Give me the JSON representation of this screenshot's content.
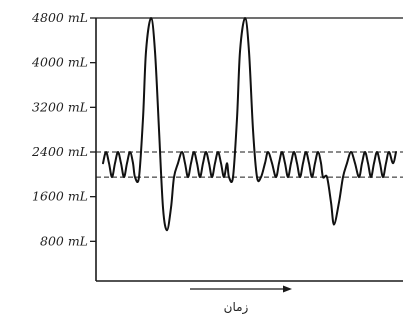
{
  "chart_data": {
    "type": "line",
    "title": "",
    "xlabel": "زمان",
    "ylabel": "",
    "yunit": "mL",
    "ylim": [
      0,
      4800
    ],
    "yticks": [
      800,
      1600,
      2400,
      3200,
      4000,
      4800
    ],
    "ytick_labels": [
      "800 mL",
      "1600 mL",
      "2400 mL",
      "3200 mL",
      "4000 mL",
      "4800 mL"
    ],
    "x_direction_arrow": "right",
    "grid": false,
    "reference_lines": [
      {
        "y": 2400,
        "style": "dashed"
      },
      {
        "y": 1950,
        "style": "dashed"
      }
    ],
    "series": [
      {
        "x": [
          0,
          3,
          6,
          9,
          12,
          15,
          18,
          21,
          24,
          27,
          30,
          32,
          36,
          40,
          43,
          48,
          52,
          56,
          60,
          64,
          68,
          71,
          75,
          79,
          82,
          85,
          88,
          91,
          94,
          97,
          100,
          103,
          106,
          109,
          112,
          115,
          118,
          121,
          124,
          126,
          130,
          134,
          137,
          142,
          146,
          150,
          154,
          158,
          162,
          165,
          169,
          173,
          176,
          179,
          182,
          185,
          188,
          191,
          194,
          197,
          200,
          203,
          206,
          209,
          212,
          215,
          218,
          220,
          224,
          228,
          231,
          236,
          240,
          244,
          248,
          252,
          256,
          259,
          262,
          265,
          268,
          271,
          274,
          277,
          280,
          283,
          286,
          290,
          293
        ],
        "values": [
          2200,
          2400,
          2200,
          1950,
          2200,
          2400,
          2200,
          1950,
          2200,
          2400,
          2200,
          1950,
          1950,
          3000,
          4200,
          4800,
          4200,
          2800,
          1400,
          1000,
          1400,
          1950,
          2200,
          2400,
          2200,
          1950,
          2200,
          2400,
          2200,
          1950,
          2200,
          2400,
          2200,
          1950,
          2200,
          2400,
          2200,
          1950,
          2200,
          1950,
          1950,
          3000,
          4200,
          4800,
          4200,
          2800,
          1950,
          1950,
          2200,
          2400,
          2200,
          1950,
          2200,
          2400,
          2200,
          1950,
          2200,
          2400,
          2200,
          1950,
          2200,
          2400,
          2200,
          1950,
          2200,
          2400,
          2200,
          1950,
          1950,
          1500,
          1100,
          1500,
          1950,
          2200,
          2400,
          2200,
          1950,
          2200,
          2400,
          2200,
          1950,
          2200,
          2400,
          2200,
          1950,
          2200,
          2400,
          2200,
          2400
        ]
      }
    ]
  }
}
